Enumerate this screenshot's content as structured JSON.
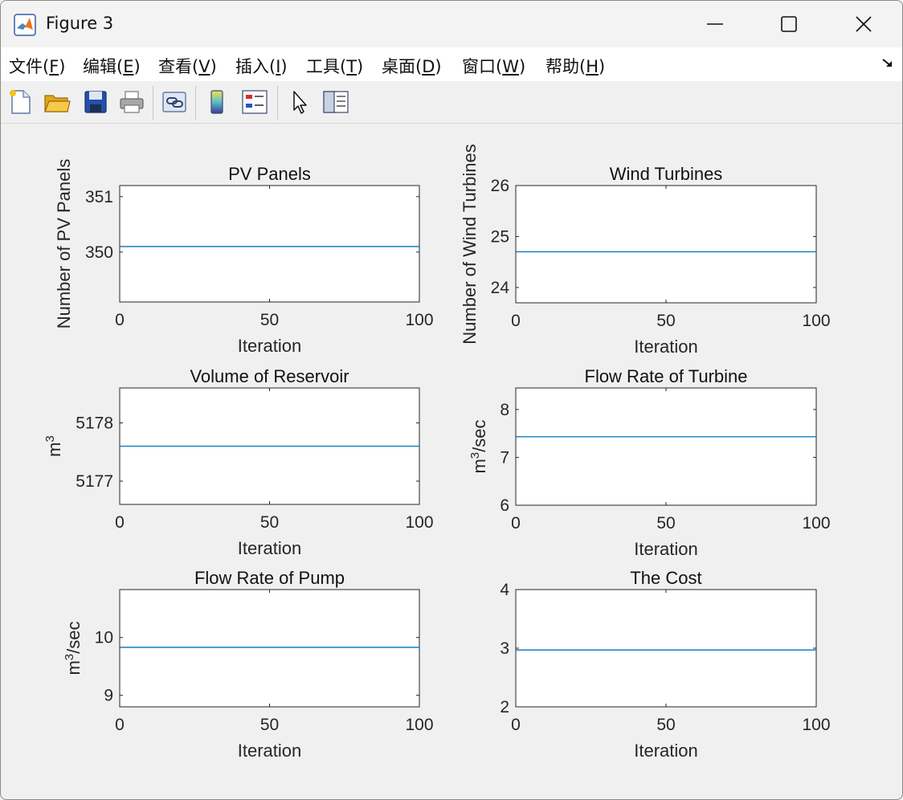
{
  "window": {
    "title": "Figure 3"
  },
  "menus": [
    {
      "prefix": "文件(",
      "key": "F",
      "suffix": ")"
    },
    {
      "prefix": "编辑(",
      "key": "E",
      "suffix": ")"
    },
    {
      "prefix": "查看(",
      "key": "V",
      "suffix": ")"
    },
    {
      "prefix": "插入(",
      "key": "I",
      "suffix": ")"
    },
    {
      "prefix": "工具(",
      "key": "T",
      "suffix": ")"
    },
    {
      "prefix": "桌面(",
      "key": "D",
      "suffix": ")"
    },
    {
      "prefix": "窗口(",
      "key": "W",
      "suffix": ")"
    },
    {
      "prefix": "帮助(",
      "key": "H",
      "suffix": ")"
    }
  ],
  "toolbar": [
    {
      "name": "new-figure-icon"
    },
    {
      "name": "open-file-icon"
    },
    {
      "name": "save-icon"
    },
    {
      "name": "print-icon"
    },
    {
      "name": "link-plot-icon"
    },
    {
      "name": "colorbar-icon"
    },
    {
      "name": "legend-icon"
    },
    {
      "name": "edit-plot-cursor-icon"
    },
    {
      "name": "property-inspector-icon"
    }
  ],
  "colors": {
    "line": "#0072bd",
    "axes": "#262626",
    "figure_bg": "#f0f0f0"
  },
  "chart_data": [
    {
      "type": "line",
      "title": "PV Panels",
      "xlabel": "Iteration",
      "ylabel": "Number of PV Panels",
      "ylabel_sup": "",
      "ylabel_rest": "",
      "xlim": [
        0,
        100
      ],
      "ylim": [
        349.1,
        351.2
      ],
      "xticks": [
        0,
        50,
        100
      ],
      "yticks": [
        350,
        351
      ],
      "x": [
        0,
        100
      ],
      "y": [
        350.1,
        350.1
      ]
    },
    {
      "type": "line",
      "title": "Wind Turbines",
      "xlabel": "Iteration",
      "ylabel": "Number of Wind Turbines",
      "ylabel_sup": "",
      "ylabel_rest": "",
      "xlim": [
        0,
        100
      ],
      "ylim": [
        23.7,
        26
      ],
      "xticks": [
        0,
        50,
        100
      ],
      "yticks": [
        24,
        25,
        26
      ],
      "x": [
        0,
        100
      ],
      "y": [
        24.7,
        24.7
      ]
    },
    {
      "type": "line",
      "title": "Volume of Reservoir",
      "xlabel": "Iteration",
      "ylabel": "m",
      "ylabel_sup": "3",
      "ylabel_rest": "",
      "xlim": [
        0,
        100
      ],
      "ylim": [
        5176.6,
        5178.6
      ],
      "xticks": [
        0,
        50,
        100
      ],
      "yticks": [
        5177,
        5178
      ],
      "x": [
        0,
        100
      ],
      "y": [
        5177.6,
        5177.6
      ]
    },
    {
      "type": "line",
      "title": "Flow Rate of Turbine",
      "xlabel": "Iteration",
      "ylabel": "m",
      "ylabel_sup": "3",
      "ylabel_rest": "/sec",
      "xlim": [
        0,
        100
      ],
      "ylim": [
        6,
        8.45
      ],
      "xticks": [
        0,
        50,
        100
      ],
      "yticks": [
        6,
        7,
        8
      ],
      "x": [
        0,
        100
      ],
      "y": [
        7.43,
        7.43
      ]
    },
    {
      "type": "line",
      "title": "Flow Rate of Pump",
      "xlabel": "Iteration",
      "ylabel": "m",
      "ylabel_sup": "3",
      "ylabel_rest": "/sec",
      "xlim": [
        0,
        100
      ],
      "ylim": [
        8.8,
        10.83
      ],
      "xticks": [
        0,
        50,
        100
      ],
      "yticks": [
        9,
        10
      ],
      "x": [
        0,
        100
      ],
      "y": [
        9.83,
        9.83
      ]
    },
    {
      "type": "line",
      "title": "The Cost",
      "xlabel": "Iteration",
      "ylabel": "",
      "ylabel_sup": "",
      "ylabel_rest": "",
      "xlim": [
        0,
        100
      ],
      "ylim": [
        2,
        4
      ],
      "xticks": [
        0,
        50,
        100
      ],
      "yticks": [
        2,
        3,
        4
      ],
      "x": [
        0,
        100
      ],
      "y": [
        2.97,
        2.97
      ]
    }
  ]
}
